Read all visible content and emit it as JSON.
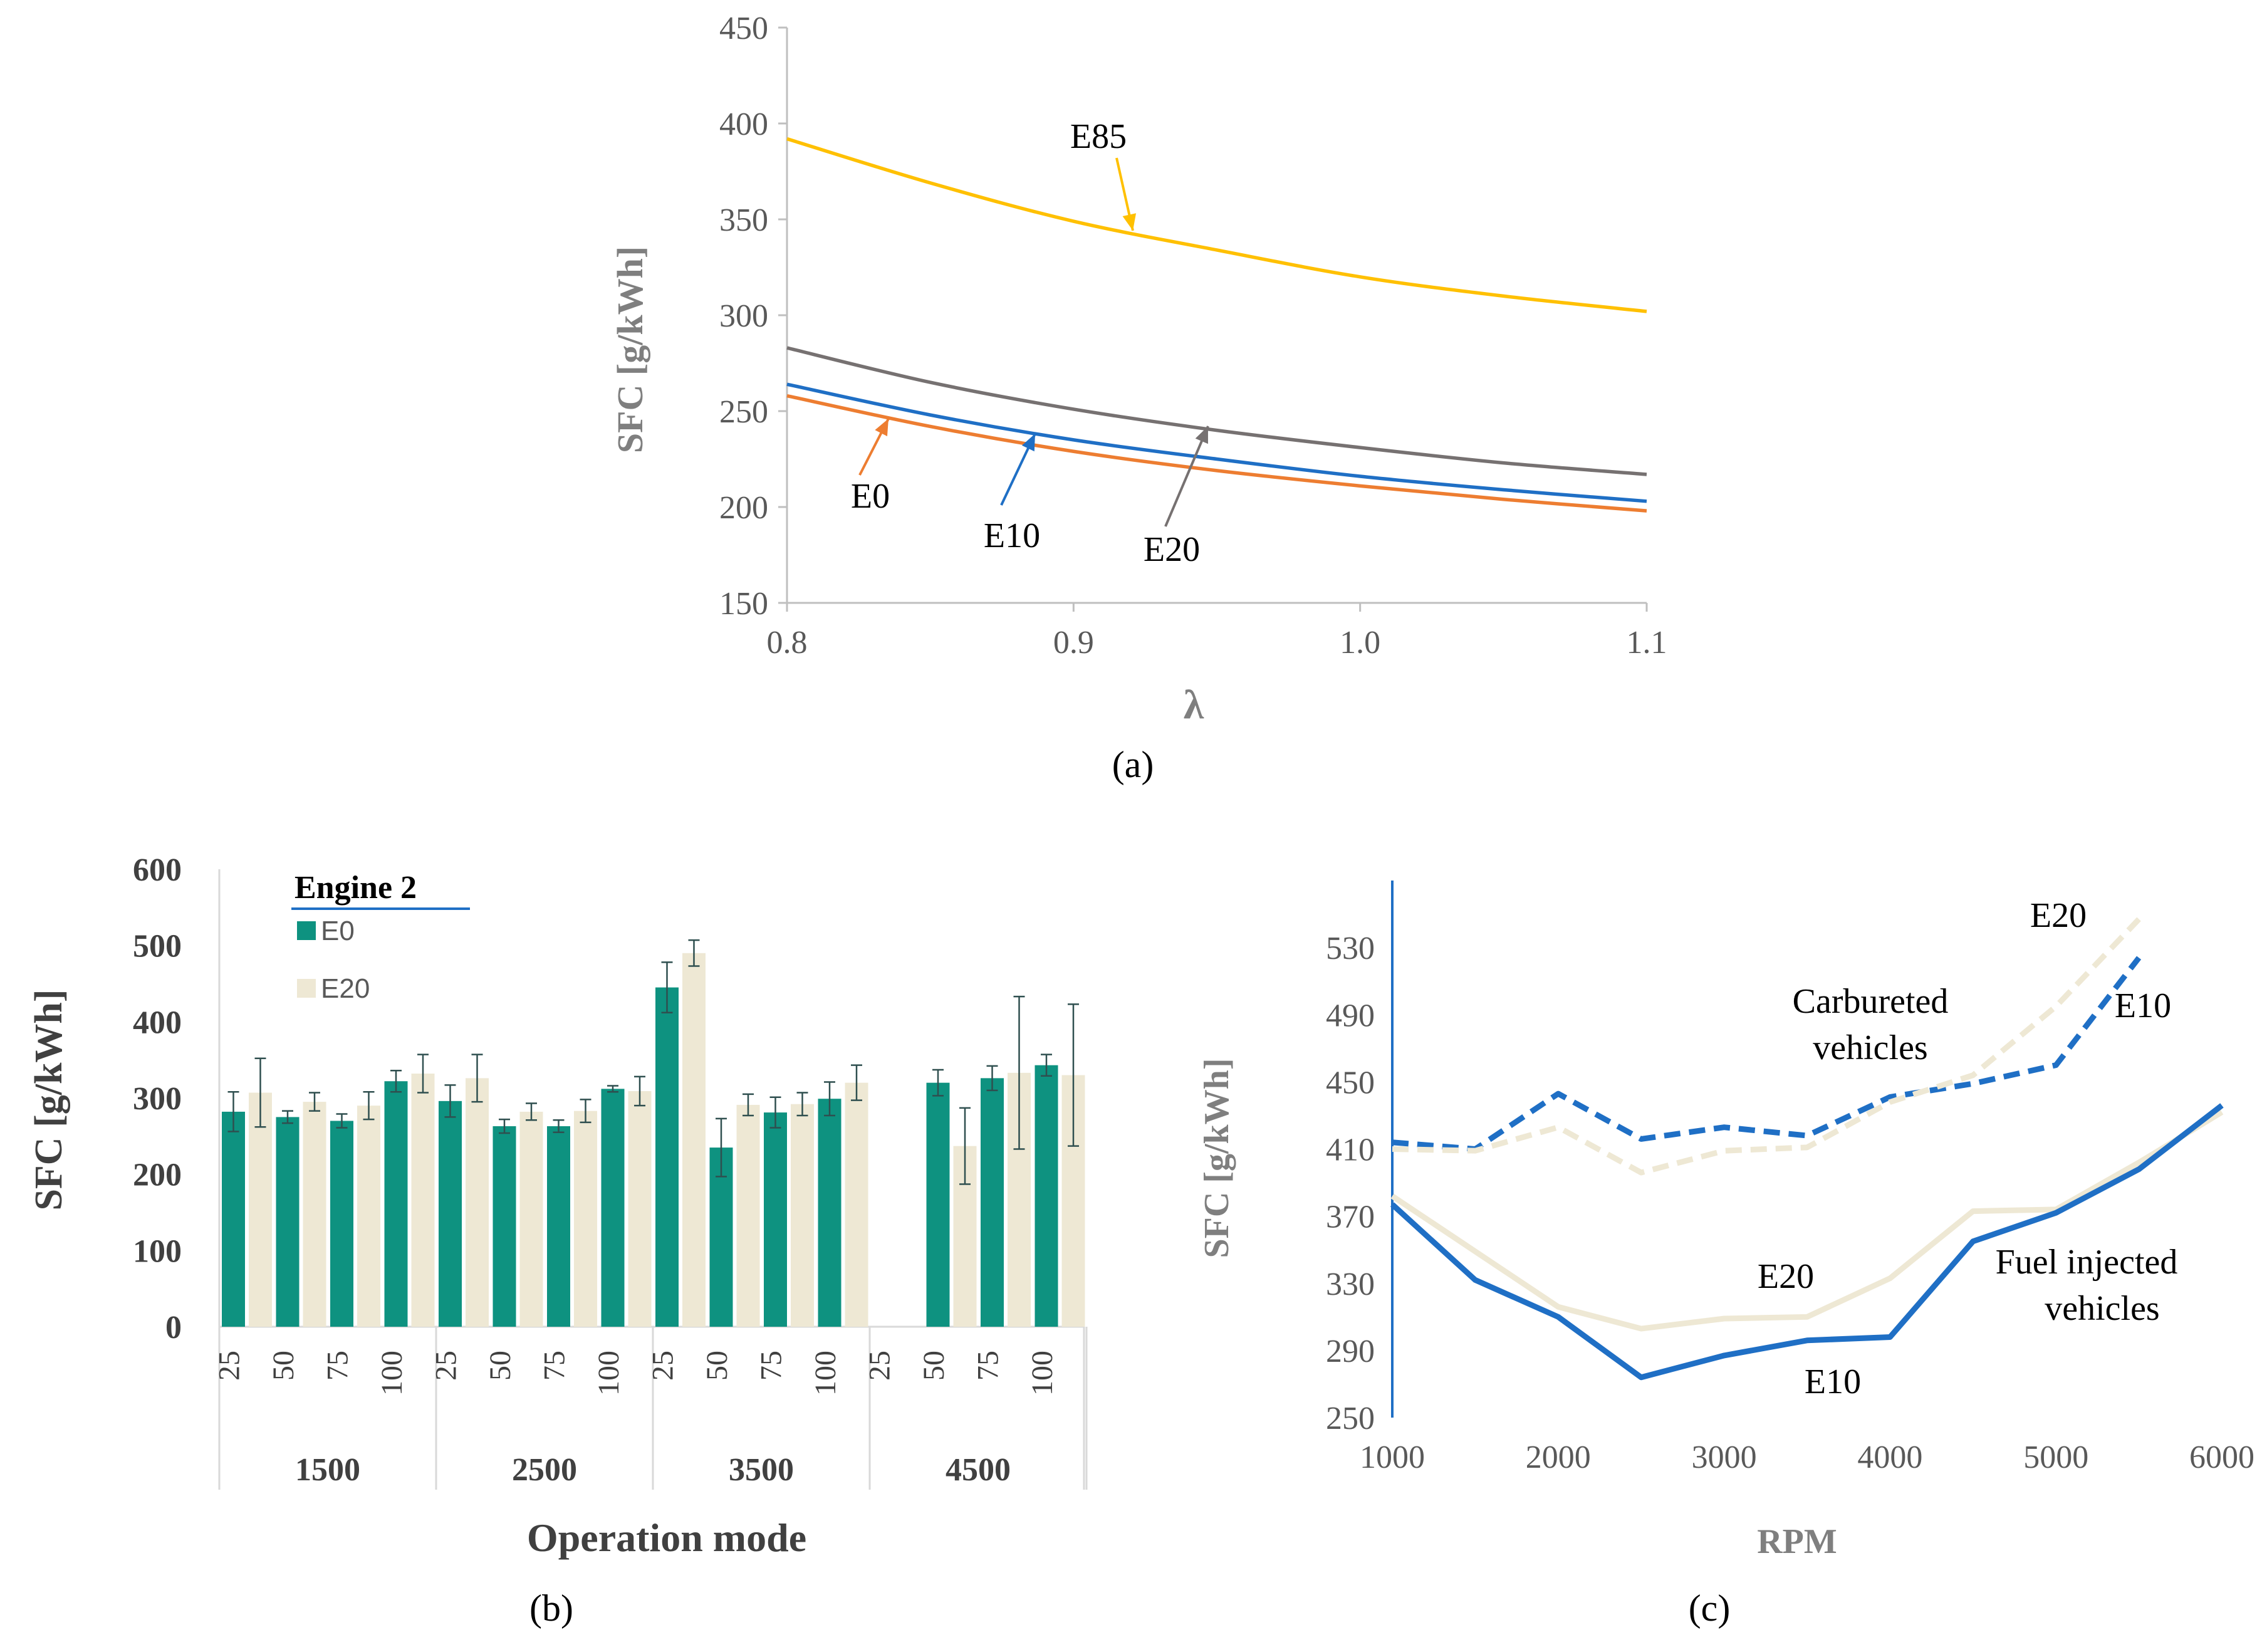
{
  "chart_data": [
    {
      "id": "a",
      "type": "line",
      "caption": "(a)",
      "xlabel": "λ",
      "ylabel": "SFC [g/kWh]",
      "xlim": [
        0.8,
        1.1
      ],
      "ylim": [
        150,
        450
      ],
      "xticks": [
        "0.8",
        "0.9",
        "1.0",
        "1.1"
      ],
      "yticks": [
        "150",
        "200",
        "250",
        "300",
        "350",
        "400",
        "450"
      ],
      "x": [
        0.8,
        0.85,
        0.9,
        0.95,
        1.0,
        1.05,
        1.1
      ],
      "series": [
        {
          "name": "E85",
          "color": "#ffc000",
          "values": [
            392,
            369,
            349,
            334,
            320,
            310,
            302
          ]
        },
        {
          "name": "E20",
          "color": "#767171",
          "values": [
            283,
            265,
            251,
            240,
            231,
            223,
            217
          ]
        },
        {
          "name": "E10",
          "color": "#1f6fc5",
          "values": [
            264,
            248,
            235,
            225,
            216,
            209,
            203
          ]
        },
        {
          "name": "E0",
          "color": "#ed7d31",
          "values": [
            258,
            242,
            229,
            219,
            211,
            204,
            198
          ]
        }
      ],
      "annotations": [
        "E85",
        "E0",
        "E10",
        "E20"
      ]
    },
    {
      "id": "b",
      "type": "bar",
      "caption": "(b)",
      "xlabel": "Operation mode",
      "ylabel": "SFC [g/kWh]",
      "ylim": [
        0,
        600
      ],
      "yticks": [
        "0",
        "100",
        "200",
        "300",
        "400",
        "500",
        "600"
      ],
      "legend_title": "Engine 2",
      "groups": [
        "1500",
        "2500",
        "3500",
        "4500"
      ],
      "categories": [
        "25",
        "50",
        "75",
        "100",
        "25",
        "50",
        "75",
        "100",
        "25",
        "50",
        "75",
        "100",
        "25",
        "50",
        "75",
        "100"
      ],
      "series": [
        {
          "name": "E0",
          "color": "#0e9280",
          "values": [
            282,
            275,
            270,
            322,
            296,
            263,
            263,
            312,
            445,
            235,
            281,
            299,
            null,
            320,
            326,
            343
          ],
          "errors": [
            26,
            8,
            9,
            14,
            21,
            9,
            8,
            4,
            33,
            38,
            20,
            22,
            null,
            17,
            16,
            14
          ]
        },
        {
          "name": "E20",
          "color": "#eee8d4",
          "values": [
            307,
            295,
            290,
            332,
            326,
            282,
            283,
            309,
            490,
            291,
            292,
            320,
            null,
            237,
            333,
            330
          ],
          "errors": [
            45,
            12,
            18,
            25,
            31,
            11,
            15,
            19,
            17,
            14,
            15,
            23,
            null,
            50,
            100,
            93
          ]
        }
      ]
    },
    {
      "id": "c",
      "type": "line",
      "caption": "(c)",
      "xlabel": "RPM",
      "ylabel": "SFC [g/kWh]",
      "xlim": [
        1000,
        6000
      ],
      "ylim": [
        250,
        570
      ],
      "xticks": [
        "1000",
        "2000",
        "3000",
        "4000",
        "5000",
        "6000"
      ],
      "yticks": [
        "250",
        "290",
        "330",
        "370",
        "410",
        "450",
        "490",
        "530"
      ],
      "series": [
        {
          "name": "E10 carbureted",
          "color": "#1f6fc5",
          "dash": true,
          "x": [
            1000,
            1500,
            2000,
            2500,
            3000,
            3500,
            4000,
            4500,
            5000,
            5500
          ],
          "values": [
            414,
            410,
            443,
            416,
            423,
            418,
            441,
            449,
            460,
            524
          ]
        },
        {
          "name": "E20 carbureted",
          "color": "#eee8d4",
          "dash": true,
          "x": [
            1000,
            1500,
            2000,
            2500,
            3000,
            3500,
            4000,
            4500,
            5000,
            5500
          ],
          "values": [
            410,
            409,
            423,
            396,
            409,
            411,
            438,
            454,
            495,
            547
          ]
        },
        {
          "name": "E20 fuel injected",
          "color": "#eee8d4",
          "dash": false,
          "x": [
            1000,
            1500,
            2000,
            2500,
            3000,
            3500,
            4000,
            4500,
            5000,
            5500,
            6000
          ],
          "values": [
            382,
            349,
            316,
            303,
            309,
            310,
            333,
            373,
            374,
            402,
            432
          ]
        },
        {
          "name": "E10 fuel injected",
          "color": "#1f6fc5",
          "dash": false,
          "x": [
            1000,
            1500,
            2000,
            2500,
            3000,
            3500,
            4000,
            4500,
            5000,
            5500,
            6000
          ],
          "values": [
            377,
            332,
            310,
            274,
            287,
            296,
            298,
            355,
            372,
            398,
            436
          ]
        }
      ],
      "annotations": [
        "E20",
        "E10",
        "Carbureted vehicles",
        "E20",
        "E10",
        "Fuel injected vehicles"
      ]
    }
  ]
}
